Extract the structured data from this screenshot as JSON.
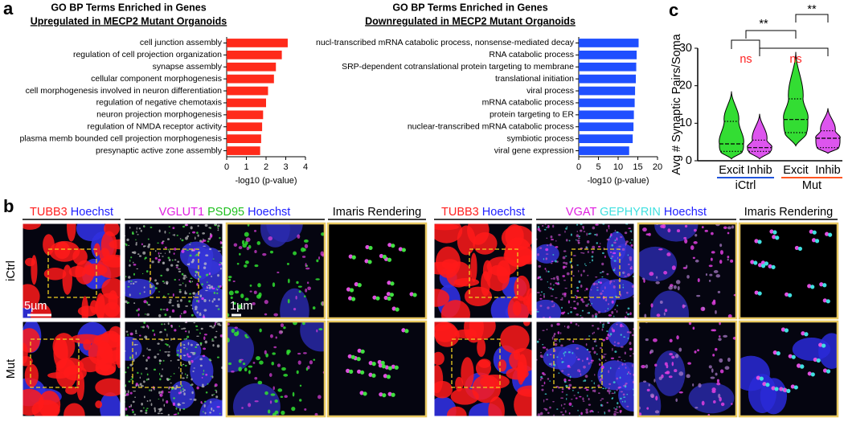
{
  "panel_labels": [
    "a",
    "b",
    "c"
  ],
  "chart_data": [
    {
      "type": "barh",
      "title": "GO BP Terms Enriched in Genes",
      "subtitle": "Upregulated in MECP2 Mutant Organoids",
      "categories": [
        "cell junction assembly",
        "regulation of cell projection organization",
        "synapse assembly",
        "cellular component morphogenesis",
        "cell morphogenesis involved in neuron differentiation",
        "regulation of negative chemotaxis",
        "neuron projection morphogenesis",
        "regulation of NMDA receptor activity",
        "plasma memb bounded cell projection morphogenesis",
        "presynaptic active zone assembly"
      ],
      "values": [
        3.1,
        2.8,
        2.5,
        2.4,
        2.1,
        2.0,
        1.85,
        1.8,
        1.75,
        1.7
      ],
      "color": "#ff2a1a",
      "xlim": [
        0,
        4
      ],
      "xticks": [
        0,
        1,
        2,
        3,
        4
      ],
      "xlabel": "-log10 (p-value)"
    },
    {
      "type": "barh",
      "title": "GO BP Terms Enriched in Genes",
      "subtitle": "Downregulated in MECP2 Mutant Organoids",
      "categories": [
        "nucl-transcribed mRNA catabolic process, nonsense-mediated decay",
        "RNA catabolic process",
        "SRP-dependent cotranslational protein targeting to membrane",
        "translational initiation",
        "viral process",
        "mRNA catabolic process",
        "protein targeting to ER",
        "nuclear-transcribed mRNA catabolic process",
        "symbiotic process",
        "viral gene expression"
      ],
      "values": [
        15.2,
        14.7,
        14.6,
        14.5,
        14.3,
        14.2,
        14.0,
        13.9,
        13.7,
        12.8
      ],
      "color": "#1f4fff",
      "xlim": [
        0,
        20
      ],
      "xticks": [
        0,
        5,
        10,
        15,
        20
      ],
      "xlabel": "-log10 (p-value)"
    },
    {
      "type": "violin",
      "ylabel": "Avg # Synaptic Pairs/Soma",
      "ylim": [
        0,
        30
      ],
      "yticks": [
        0,
        10,
        20,
        30
      ],
      "categories": [
        "Excit",
        "Inhib",
        "Excit",
        "Inhib"
      ],
      "groups": [
        "iCtrl",
        "Mut"
      ],
      "group_colors": [
        "#2255dd",
        "#ff5522"
      ],
      "violins": [
        {
          "min": 0.5,
          "q1": 2.5,
          "median": 4.5,
          "q3": 10.5,
          "max": 18.5,
          "color": "#33dd33"
        },
        {
          "min": 0.5,
          "q1": 2.5,
          "median": 3.5,
          "q3": 5.5,
          "max": 12.5,
          "color": "#dd55ee"
        },
        {
          "min": 4,
          "q1": 7.5,
          "median": 11,
          "q3": 16.5,
          "max": 29,
          "color": "#33dd33"
        },
        {
          "min": 2,
          "q1": 3.5,
          "median": 6,
          "q3": 8,
          "max": 14,
          "color": "#dd55ee"
        }
      ],
      "annotations": [
        {
          "text": "**",
          "color": "#000000"
        },
        {
          "text": "**",
          "color": "#000000"
        },
        {
          "text": "ns",
          "color": "#ff2222"
        },
        {
          "text": "ns",
          "color": "#ff2222"
        }
      ]
    }
  ],
  "panel_b": {
    "headers": [
      [
        {
          "text": "TUBB3",
          "color": "#ff2020"
        },
        {
          "text": "Hoechst",
          "color": "#2020ff"
        }
      ],
      [
        {
          "text": "VGLUT1",
          "color": "#e020e0"
        },
        {
          "text": "PSD95",
          "color": "#20c020"
        },
        {
          "text": "Hoechst",
          "color": "#2020ff"
        }
      ],
      [
        {
          "text": "Imaris Rendering",
          "color": "#000000"
        }
      ],
      [
        {
          "text": "TUBB3",
          "color": "#ff2020"
        },
        {
          "text": "Hoechst",
          "color": "#2020ff"
        }
      ],
      [
        {
          "text": "VGAT",
          "color": "#e020e0"
        },
        {
          "text": "GEPHYRIN",
          "color": "#40e0e0"
        },
        {
          "text": "Hoechst",
          "color": "#2020ff"
        }
      ],
      [
        {
          "text": "Imaris Rendering",
          "color": "#000000"
        }
      ]
    ],
    "rows": [
      "iCtrl",
      "Mut"
    ],
    "scale_bars": [
      "5µm",
      "1µm"
    ]
  }
}
